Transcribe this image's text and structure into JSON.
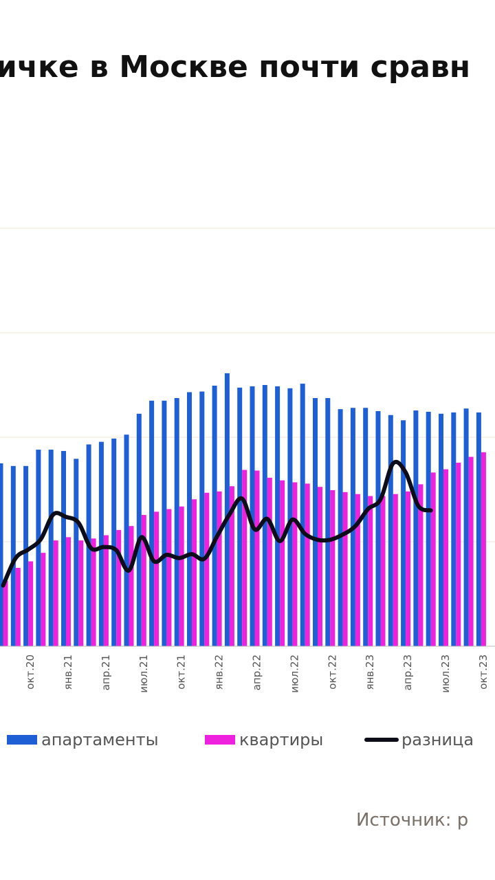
{
  "title": "ичке в Москве почти сравн",
  "source": "Источник: р",
  "colors": {
    "apartments": "#1f5fd6",
    "flats": "#ee22dd",
    "difference": "#0d0d1a",
    "grid": "#f0e4d4",
    "tick_text": "#555555"
  },
  "legend": [
    {
      "label": "апартаменты",
      "kind": "bar",
      "color": "#1f5fd6"
    },
    {
      "label": "квартиры",
      "kind": "bar",
      "color": "#ee22dd"
    },
    {
      "label": "разница",
      "kind": "line",
      "color": "#0d0d1a"
    }
  ],
  "chart_data": {
    "type": "bar",
    "title": "",
    "grid": true,
    "tick_labels": [
      "окт.20",
      "янв.21",
      "апр.21",
      "июл.21",
      "окт.21",
      "янв.22",
      "апр.22",
      "июл.22",
      "окт.22",
      "янв.23",
      "апр.23",
      "июл.23",
      "окт.23"
    ],
    "tick_start_index": 2,
    "tick_every": 3,
    "series": [
      {
        "name": "апартаменты",
        "kind": "bar",
        "values": [
          280,
          276,
          276,
          301,
          301,
          299,
          287,
          309,
          313,
          318,
          324,
          356,
          376,
          376,
          380,
          389,
          390,
          399,
          418,
          396,
          398,
          400,
          398,
          395,
          402,
          380,
          380,
          363,
          365,
          365,
          360,
          354,
          346,
          361,
          359,
          356,
          358,
          364,
          358
        ]
      },
      {
        "name": "квартиры",
        "kind": "bar",
        "values": [
          100,
          120,
          130,
          143,
          162,
          167,
          162,
          165,
          170,
          178,
          184,
          201,
          206,
          210,
          214,
          225,
          235,
          237,
          245,
          270,
          269,
          258,
          254,
          251,
          249,
          244,
          239,
          236,
          233,
          230,
          230,
          233,
          237,
          248,
          266,
          271,
          281,
          290,
          297
        ]
      },
      {
        "name": "разница",
        "kind": "line",
        "values": [
          93,
          135,
          148,
          164,
          202,
          198,
          189,
          150,
          152,
          147,
          116,
          167,
          130,
          140,
          135,
          141,
          134,
          168,
          202,
          226,
          179,
          195,
          161,
          194,
          172,
          163,
          163,
          171,
          184,
          210,
          225,
          280,
          266,
          215,
          208
        ]
      }
    ]
  }
}
